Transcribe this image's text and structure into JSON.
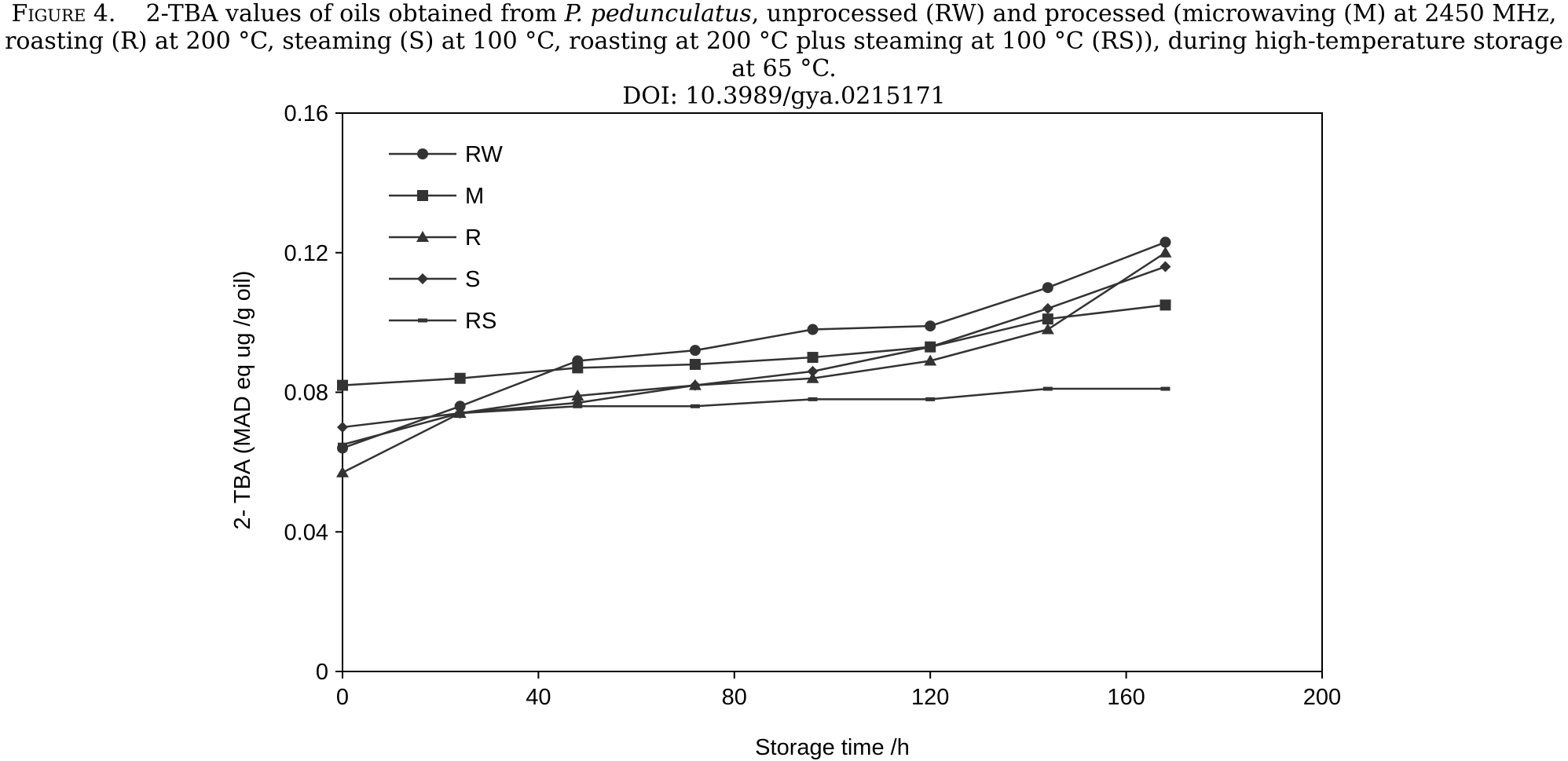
{
  "caption": {
    "label": "Figure 4.",
    "line1_a": "2-TBA values of oils obtained from ",
    "line1_species": "P. pedunculatus",
    "line1_b": ", unprocessed (RW) and processed (microwaving (M) at 2450 MHz,",
    "line2": "roasting (R) at 200 °C, steaming (S) at 100 °C, roasting at 200 °C plus steaming at 100 °C (RS)), during high-temperature storage at 65 °C.",
    "line3": "DOI: 10.3989/gya.0215171"
  },
  "chart_data": {
    "type": "line",
    "title": "",
    "xlabel": "Storage time /h",
    "ylabel": "2- TBA (MAD eq ug /g oil)",
    "xlim": [
      0,
      200
    ],
    "ylim": [
      0,
      0.16
    ],
    "xticks": [
      0,
      40,
      80,
      120,
      160,
      200
    ],
    "xtick_labels": [
      "0",
      "40",
      "80",
      "120",
      "160",
      "200"
    ],
    "yticks": [
      0,
      0.04,
      0.08,
      0.12,
      0.16
    ],
    "ytick_labels": [
      "0",
      "0.04",
      "0.08",
      "0.12",
      "0.16"
    ],
    "grid": false,
    "legend_position": "top-left",
    "x": [
      0,
      24,
      48,
      72,
      96,
      120,
      144,
      168
    ],
    "series": [
      {
        "name": "RW",
        "marker": "circle",
        "values": [
          0.064,
          0.076,
          0.089,
          0.092,
          0.098,
          0.099,
          0.11,
          0.123
        ]
      },
      {
        "name": "M",
        "marker": "square",
        "values": [
          0.082,
          0.084,
          0.087,
          0.088,
          0.09,
          0.093,
          0.101,
          0.105
        ]
      },
      {
        "name": "R",
        "marker": "triangle",
        "values": [
          0.057,
          0.074,
          0.079,
          0.082,
          0.084,
          0.089,
          0.098,
          0.12
        ]
      },
      {
        "name": "S",
        "marker": "diamond",
        "values": [
          0.07,
          0.074,
          0.077,
          0.082,
          0.086,
          0.093,
          0.104,
          0.116
        ]
      },
      {
        "name": "RS",
        "marker": "dash",
        "values": [
          0.065,
          0.074,
          0.076,
          0.076,
          0.078,
          0.078,
          0.081,
          0.081
        ]
      }
    ],
    "colors": {
      "line": "#333333",
      "axis": "#000000"
    }
  }
}
